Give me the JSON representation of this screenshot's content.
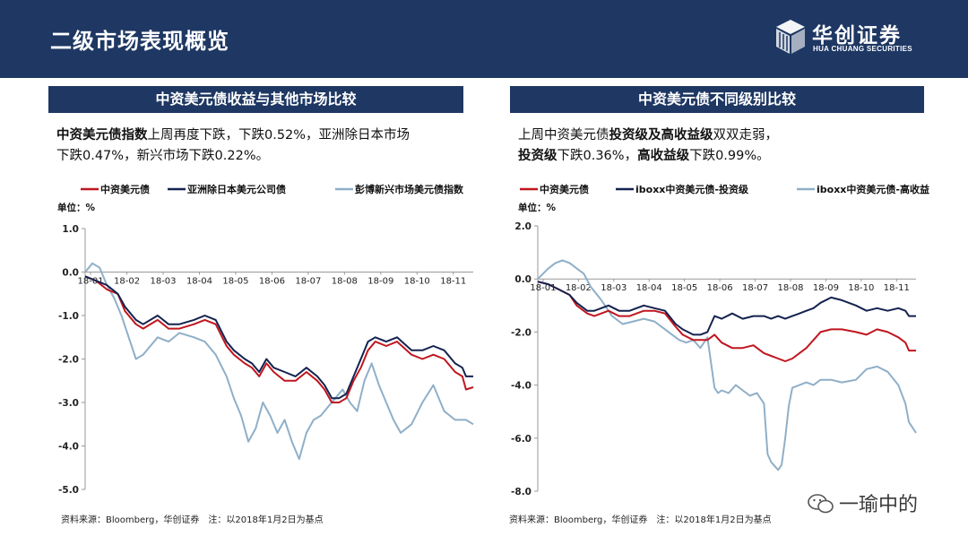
{
  "header": {
    "title": "二级市场表现概览"
  },
  "logo": {
    "cn": "华创证券",
    "en": "HUA CHUANG SECURITIES"
  },
  "left_panel": {
    "title": "中资美元债收益与其他市场比较",
    "desc_bold1": "中资美元债指数",
    "desc_rest1": "上周再度下跌，下跌0.52%，亚洲除日本市场",
    "desc_line2": "下跌0.47%，新兴市场下跌0.22%。",
    "unit": "单位：%",
    "source": "资料来源：Bloomberg，华创证券　注：以2018年1月2日为基点"
  },
  "right_panel": {
    "title": "中资美元债不同级别比较",
    "desc_pre": "上周中资美元债",
    "desc_bold1": "投资级及高收益级",
    "desc_post1": "双双走弱，",
    "desc_bold2": "投资级",
    "desc_mid2": "下跌0.36%，",
    "desc_bold3": "高收益级",
    "desc_post2": "下跌0.99%。",
    "unit": "单位：%",
    "source": "资料来源：Bloomberg，华创证券　注：以2018年1月2日为基点"
  },
  "watermark": "一瑜中的",
  "colors": {
    "navy": "#1e3763",
    "red": "#c0161f",
    "dark_navy": "#14224f",
    "light_blue": "#8fafc8"
  },
  "chart_data": [
    {
      "type": "line",
      "ylim": [
        -5.0,
        1.0
      ],
      "yticks": [
        "1.0",
        "0.0",
        "-1.0",
        "-2.0",
        "-3.0",
        "-4.0",
        "-5.0"
      ],
      "xticks": [
        "18-01",
        "18-02",
        "18-03",
        "18-04",
        "18-05",
        "18-06",
        "18-07",
        "18-08",
        "18-09",
        "18-10",
        "18-11"
      ],
      "series": [
        {
          "name": "中资美元债",
          "color": "#c0161f",
          "x": [
            0,
            0.3,
            0.6,
            0.9,
            1.1,
            1.4,
            1.6,
            2.0,
            2.3,
            2.6,
            3.0,
            3.3,
            3.6,
            3.9,
            4.1,
            4.4,
            4.6,
            4.8,
            5.0,
            5.2,
            5.5,
            5.8,
            6.1,
            6.4,
            6.6,
            6.8,
            7.0,
            7.2,
            7.4,
            7.6,
            7.8,
            8.0,
            8.3,
            8.6,
            9.0,
            9.3,
            9.6,
            9.9,
            10.2,
            10.4,
            10.5,
            10.7
          ],
          "values": [
            -0.1,
            -0.2,
            -0.4,
            -0.5,
            -0.9,
            -1.2,
            -1.3,
            -1.1,
            -1.3,
            -1.3,
            -1.2,
            -1.1,
            -1.2,
            -1.7,
            -1.9,
            -2.1,
            -2.2,
            -2.4,
            -2.1,
            -2.3,
            -2.5,
            -2.5,
            -2.3,
            -2.5,
            -2.7,
            -3.0,
            -3.0,
            -2.9,
            -2.5,
            -2.2,
            -1.8,
            -1.6,
            -1.7,
            -1.6,
            -1.9,
            -2.0,
            -1.9,
            -2.0,
            -2.3,
            -2.4,
            -2.7,
            -2.65
          ]
        },
        {
          "name": "亚洲除日本美元公司债",
          "color": "#14224f",
          "x": [
            0,
            0.3,
            0.6,
            0.9,
            1.1,
            1.4,
            1.6,
            2.0,
            2.3,
            2.6,
            3.0,
            3.3,
            3.6,
            3.9,
            4.1,
            4.4,
            4.6,
            4.8,
            5.0,
            5.2,
            5.5,
            5.8,
            6.1,
            6.4,
            6.6,
            6.8,
            7.0,
            7.2,
            7.4,
            7.6,
            7.8,
            8.0,
            8.3,
            8.6,
            9.0,
            9.3,
            9.6,
            9.9,
            10.2,
            10.4,
            10.5,
            10.7
          ],
          "values": [
            -0.1,
            -0.2,
            -0.3,
            -0.5,
            -0.8,
            -1.1,
            -1.2,
            -1.0,
            -1.2,
            -1.2,
            -1.1,
            -1.0,
            -1.1,
            -1.6,
            -1.8,
            -2.0,
            -2.1,
            -2.3,
            -2.0,
            -2.2,
            -2.3,
            -2.4,
            -2.2,
            -2.4,
            -2.6,
            -2.9,
            -2.9,
            -2.8,
            -2.4,
            -2.0,
            -1.6,
            -1.5,
            -1.6,
            -1.5,
            -1.8,
            -1.8,
            -1.7,
            -1.8,
            -2.1,
            -2.2,
            -2.4,
            -2.4
          ]
        },
        {
          "name": "彭博新兴市场美元债指数",
          "color": "#8fafc8",
          "x": [
            0,
            0.2,
            0.4,
            0.6,
            0.8,
            1.0,
            1.2,
            1.4,
            1.6,
            1.8,
            2.0,
            2.3,
            2.6,
            3.0,
            3.3,
            3.6,
            3.9,
            4.1,
            4.3,
            4.5,
            4.7,
            4.9,
            5.1,
            5.3,
            5.5,
            5.7,
            5.9,
            6.1,
            6.3,
            6.5,
            6.7,
            6.9,
            7.1,
            7.3,
            7.5,
            7.7,
            7.9,
            8.1,
            8.3,
            8.5,
            8.7,
            9.0,
            9.3,
            9.6,
            9.9,
            10.2,
            10.5,
            10.7
          ],
          "values": [
            0.0,
            0.2,
            0.1,
            -0.3,
            -0.6,
            -1.0,
            -1.5,
            -2.0,
            -1.9,
            -1.7,
            -1.5,
            -1.6,
            -1.4,
            -1.5,
            -1.6,
            -1.9,
            -2.4,
            -2.9,
            -3.3,
            -3.9,
            -3.6,
            -3.0,
            -3.3,
            -3.7,
            -3.4,
            -3.9,
            -4.3,
            -3.7,
            -3.4,
            -3.3,
            -3.1,
            -2.9,
            -2.7,
            -3.0,
            -3.2,
            -2.5,
            -2.1,
            -2.6,
            -3.0,
            -3.4,
            -3.7,
            -3.5,
            -3.0,
            -2.6,
            -3.2,
            -3.4,
            -3.4,
            -3.5
          ]
        }
      ]
    },
    {
      "type": "line",
      "ylim": [
        -8.0,
        2.0
      ],
      "yticks": [
        "2.0",
        "0.0",
        "-2.0",
        "-4.0",
        "-6.0",
        "-8.0"
      ],
      "xticks": [
        "18-01",
        "18-02",
        "18-03",
        "18-04",
        "18-05",
        "18-06",
        "18-07",
        "18-08",
        "18-09",
        "18-10",
        "18-11"
      ],
      "series": [
        {
          "name": "中资美元债",
          "color": "#c0161f",
          "x": [
            0,
            0.3,
            0.6,
            0.9,
            1.1,
            1.4,
            1.6,
            2.0,
            2.3,
            2.6,
            3.0,
            3.3,
            3.6,
            3.9,
            4.1,
            4.4,
            4.6,
            4.8,
            5.0,
            5.2,
            5.5,
            5.8,
            6.1,
            6.4,
            6.6,
            6.8,
            7.0,
            7.2,
            7.4,
            7.6,
            7.8,
            8.0,
            8.3,
            8.6,
            9.0,
            9.3,
            9.6,
            9.9,
            10.2,
            10.4,
            10.5,
            10.7
          ],
          "values": [
            -0.1,
            -0.2,
            -0.4,
            -0.6,
            -1.0,
            -1.3,
            -1.4,
            -1.2,
            -1.4,
            -1.4,
            -1.2,
            -1.2,
            -1.3,
            -1.8,
            -2.1,
            -2.3,
            -2.3,
            -2.3,
            -2.1,
            -2.4,
            -2.6,
            -2.6,
            -2.5,
            -2.8,
            -2.9,
            -3.0,
            -3.1,
            -3.0,
            -2.8,
            -2.6,
            -2.3,
            -2.0,
            -1.9,
            -1.9,
            -2.0,
            -2.1,
            -1.9,
            -2.0,
            -2.2,
            -2.4,
            -2.7,
            -2.7
          ]
        },
        {
          "name": "iboxx中资美元债-投资级",
          "color": "#14224f",
          "x": [
            0,
            0.3,
            0.6,
            0.9,
            1.1,
            1.4,
            1.6,
            2.0,
            2.3,
            2.6,
            3.0,
            3.3,
            3.6,
            3.9,
            4.1,
            4.4,
            4.6,
            4.8,
            5.0,
            5.2,
            5.5,
            5.8,
            6.1,
            6.4,
            6.6,
            6.8,
            7.0,
            7.2,
            7.4,
            7.6,
            7.8,
            8.0,
            8.3,
            8.6,
            9.0,
            9.3,
            9.6,
            9.9,
            10.2,
            10.4,
            10.5,
            10.7
          ],
          "values": [
            -0.1,
            -0.2,
            -0.4,
            -0.6,
            -0.9,
            -1.2,
            -1.2,
            -1.0,
            -1.2,
            -1.2,
            -1.0,
            -1.1,
            -1.2,
            -1.7,
            -1.9,
            -2.1,
            -2.1,
            -2.0,
            -1.4,
            -1.5,
            -1.3,
            -1.5,
            -1.4,
            -1.4,
            -1.5,
            -1.4,
            -1.5,
            -1.4,
            -1.3,
            -1.2,
            -1.1,
            -0.9,
            -0.7,
            -0.8,
            -1.0,
            -1.2,
            -1.1,
            -1.2,
            -1.1,
            -1.2,
            -1.4,
            -1.4
          ]
        },
        {
          "name": "iboxx中资美元债-高收益",
          "color": "#8fafc8",
          "x": [
            0,
            0.3,
            0.5,
            0.7,
            0.9,
            1.1,
            1.3,
            1.5,
            1.8,
            2.1,
            2.4,
            2.7,
            3.0,
            3.3,
            3.6,
            3.8,
            4.0,
            4.2,
            4.4,
            4.6,
            4.8,
            5.0,
            5.1,
            5.2,
            5.4,
            5.6,
            5.8,
            6.0,
            6.2,
            6.4,
            6.5,
            6.6,
            6.8,
            6.9,
            7.0,
            7.1,
            7.2,
            7.4,
            7.6,
            7.8,
            8.0,
            8.3,
            8.6,
            9.0,
            9.3,
            9.6,
            9.9,
            10.2,
            10.4,
            10.5,
            10.7
          ],
          "values": [
            0.0,
            0.4,
            0.6,
            0.7,
            0.6,
            0.4,
            0.2,
            -0.3,
            -0.8,
            -1.4,
            -1.7,
            -1.6,
            -1.5,
            -1.6,
            -1.9,
            -2.1,
            -2.3,
            -2.4,
            -2.3,
            -2.6,
            -2.2,
            -4.1,
            -4.3,
            -4.2,
            -4.3,
            -4.0,
            -4.2,
            -4.4,
            -4.3,
            -4.7,
            -6.6,
            -6.9,
            -7.2,
            -7.0,
            -6.0,
            -4.8,
            -4.1,
            -4.0,
            -3.9,
            -4.0,
            -3.8,
            -3.8,
            -3.9,
            -3.8,
            -3.4,
            -3.3,
            -3.5,
            -4.0,
            -4.7,
            -5.4,
            -5.8
          ]
        }
      ]
    }
  ]
}
